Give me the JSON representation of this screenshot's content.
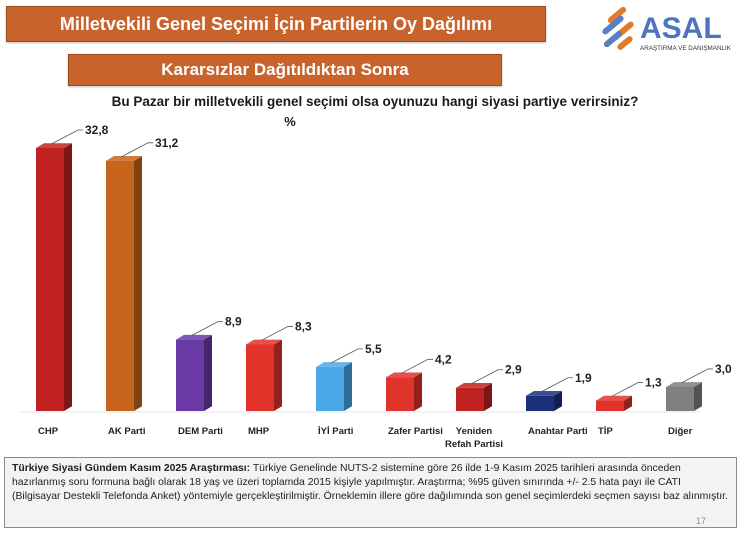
{
  "header": {
    "title": "Milletvekili Genel Seçimi İçin Partilerin Oy Dağılımı",
    "subtitle": "Kararsızlar Dağıtıldıktan Sonra",
    "question": "Bu Pazar bir milletvekili genel seçimi olsa oyunuzu  hangi siyasi partiye verirsiniz?",
    "unit": "%"
  },
  "logo": {
    "name": "ASAL",
    "tagline": "ARAŞTIRMA VE DANIŞMANLIK",
    "colors": [
      "#e07b2a",
      "#5b7fc4"
    ]
  },
  "chart_data": {
    "type": "bar",
    "title": "",
    "xlabel": "",
    "ylabel": "",
    "ylim": [
      0,
      35
    ],
    "grid": false,
    "legend": "none",
    "categories": [
      "CHP",
      "AK Parti",
      "DEM Parti",
      "MHP",
      "İYİ Parti",
      "Zafer Partisi",
      "Yeniden Refah Partisi",
      "Anahtar Parti",
      "TİP",
      "Diğer"
    ],
    "values": [
      32.8,
      31.2,
      8.9,
      8.3,
      5.5,
      4.2,
      2.9,
      1.9,
      1.3,
      3.0
    ],
    "labels": [
      "32,8",
      "31,2",
      "8,9",
      "8,3",
      "5,5",
      "4,2",
      "2,9",
      "1,9",
      "1,3",
      "3,0"
    ],
    "colors": [
      "#c0221f",
      "#c8651d",
      "#6a3aa6",
      "#e2332b",
      "#4aa8e8",
      "#e0332b",
      "#c0221f",
      "#1c2f7a",
      "#e0332b",
      "#7f7f7f"
    ]
  },
  "note": {
    "bold": "Türkiye Siyasi Gündem Kasım 2025 Araştırması:",
    "text": " Türkiye Genelinde  NUTS-2 sistemine göre 26 ilde 1-9 Kasım 2025 tarihleri arasında önceden hazırlanmış soru formuna bağlı olarak 18 yaş ve üzeri toplamda 2015 kişiyle yapılmıştır. Araştırma; %95 güven sınırında +/- 2.5 hata payı ile CATI (Bilgisayar Destekli Telefonda Anket) yöntemiyle gerçekleştirilmiştir. Örneklemin illere göre dağılımında son genel seçimlerdeki seçmen sayısı baz alınmıştır."
  },
  "page_number": "17"
}
